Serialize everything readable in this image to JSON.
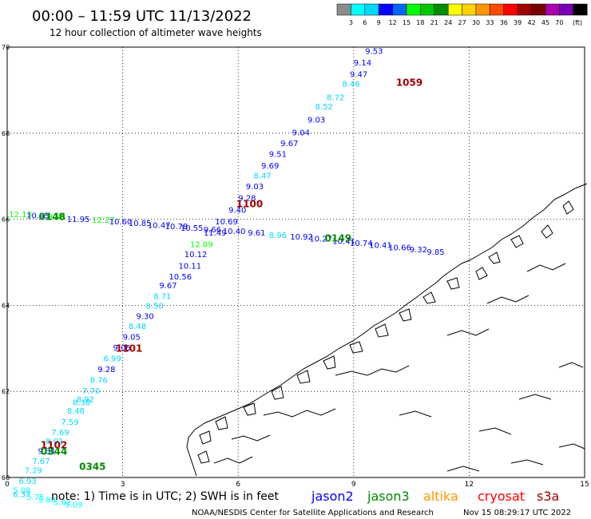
{
  "header": {
    "title": "00:00 – 11:59 UTC 11/13/2022",
    "subtitle": "12 hour collection of altimeter wave heights"
  },
  "legend": {
    "labels": [
      "3",
      "6",
      "9",
      "12",
      "15",
      "18",
      "21",
      "24",
      "27",
      "30",
      "33",
      "36",
      "39",
      "42",
      "45",
      "70"
    ],
    "unit": "(ft)",
    "colors": [
      "#8c8c8c",
      "#00ffff",
      "#00d7ff",
      "#0000ff",
      "#0064ff",
      "#00ff00",
      "#00c800",
      "#008c00",
      "#ffff00",
      "#ffd200",
      "#ff9600",
      "#ff4b00",
      "#ff0000",
      "#a00000",
      "#780000",
      "#aa00aa",
      "#7800b4",
      "#000000"
    ]
  },
  "axes": {
    "x_ticks": [
      "0",
      "3",
      "6",
      "9",
      "12",
      "15"
    ],
    "y_ticks": [
      "60",
      "62",
      "64",
      "66",
      "68",
      "70"
    ],
    "x_range": [
      0,
      15
    ],
    "y_range": [
      60,
      70
    ]
  },
  "footer": {
    "note": "note:  1) Time is in UTC; 2) SWH is in feet",
    "credit": "NOAA/NESDIS Center for Satellite Applications and Research",
    "timestamp": "Nov 15 08:29:17 UTC 2022",
    "satellites": [
      {
        "name": "jason2",
        "color": "#0000ff"
      },
      {
        "name": "jason3",
        "color": "#008c00"
      },
      {
        "name": "altika",
        "color": "#ff9600"
      },
      {
        "name": "cryosat",
        "color": "#ff0000"
      },
      {
        "name": "s3a",
        "color": "#a00000"
      }
    ]
  },
  "passes": [
    {
      "label": "1059",
      "x": 10.1,
      "y": 69.1,
      "color": "#a00000"
    },
    {
      "label": "1100",
      "x": 5.95,
      "y": 66.28,
      "color": "#a00000"
    },
    {
      "label": "0148",
      "x": 0.82,
      "y": 65.98,
      "color": "#008c00"
    },
    {
      "label": "0149",
      "x": 8.25,
      "y": 65.48,
      "color": "#008c00"
    },
    {
      "label": "1101",
      "x": 2.82,
      "y": 62.92,
      "color": "#a00000"
    },
    {
      "label": "1102",
      "x": 0.87,
      "y": 60.68,
      "color": "#a00000"
    },
    {
      "label": "0344",
      "x": 0.87,
      "y": 60.53,
      "color": "#008c00"
    },
    {
      "label": "0345",
      "x": 1.87,
      "y": 60.18,
      "color": "#008c00"
    }
  ],
  "wave_heights": [
    {
      "v": "9.53",
      "x": 9.3,
      "y": 69.84,
      "c": "#0000ff"
    },
    {
      "v": "9.14",
      "x": 9.0,
      "y": 69.57,
      "c": "#0000ff"
    },
    {
      "v": "9.47",
      "x": 8.9,
      "y": 69.3,
      "c": "#0000ff"
    },
    {
      "v": "8.46",
      "x": 8.7,
      "y": 69.08,
      "c": "#00d7ff"
    },
    {
      "v": "8.72",
      "x": 8.3,
      "y": 68.77,
      "c": "#00d7ff"
    },
    {
      "v": "8.52",
      "x": 8.0,
      "y": 68.55,
      "c": "#00d7ff"
    },
    {
      "v": "9.03",
      "x": 7.8,
      "y": 68.25,
      "c": "#0000ff"
    },
    {
      "v": "9.04",
      "x": 7.4,
      "y": 67.95,
      "c": "#0000ff"
    },
    {
      "v": "9.67",
      "x": 7.1,
      "y": 67.7,
      "c": "#0000ff"
    },
    {
      "v": "9.51",
      "x": 6.8,
      "y": 67.45,
      "c": "#0000ff"
    },
    {
      "v": "9.69",
      "x": 6.6,
      "y": 67.18,
      "c": "#0000ff"
    },
    {
      "v": "8.47",
      "x": 6.4,
      "y": 66.95,
      "c": "#00d7ff"
    },
    {
      "v": "9.03",
      "x": 6.2,
      "y": 66.7,
      "c": "#0000ff"
    },
    {
      "v": "9.28",
      "x": 6.0,
      "y": 66.43,
      "c": "#0000ff"
    },
    {
      "v": "9.40",
      "x": 5.75,
      "y": 66.15,
      "c": "#0000ff"
    },
    {
      "v": "10.69",
      "x": 5.4,
      "y": 65.88,
      "c": "#0000ff"
    },
    {
      "v": "11.49",
      "x": 5.1,
      "y": 65.62,
      "c": "#0000ff"
    },
    {
      "v": "12.09",
      "x": 4.75,
      "y": 65.35,
      "c": "#00ff00"
    },
    {
      "v": "10.12",
      "x": 4.6,
      "y": 65.12,
      "c": "#0000ff"
    },
    {
      "v": "10.11",
      "x": 4.45,
      "y": 64.85,
      "c": "#0000ff"
    },
    {
      "v": "10.56",
      "x": 4.2,
      "y": 64.6,
      "c": "#0000ff"
    },
    {
      "v": "9.67",
      "x": 3.95,
      "y": 64.4,
      "c": "#0000ff"
    },
    {
      "v": "8.71",
      "x": 3.8,
      "y": 64.15,
      "c": "#00d7ff"
    },
    {
      "v": "8.50",
      "x": 3.6,
      "y": 63.92,
      "c": "#00d7ff"
    },
    {
      "v": "9.30",
      "x": 3.35,
      "y": 63.68,
      "c": "#0000ff"
    },
    {
      "v": "8.48",
      "x": 3.15,
      "y": 63.45,
      "c": "#00d7ff"
    },
    {
      "v": "9.05",
      "x": 3.0,
      "y": 63.2,
      "c": "#0000ff"
    },
    {
      "v": "9.05",
      "x": 2.75,
      "y": 62.95,
      "c": "#0000ff"
    },
    {
      "v": "6.99",
      "x": 2.5,
      "y": 62.7,
      "c": "#00d7ff"
    },
    {
      "v": "9.28",
      "x": 2.35,
      "y": 62.45,
      "c": "#0000ff"
    },
    {
      "v": "8.76",
      "x": 2.15,
      "y": 62.2,
      "c": "#00d7ff"
    },
    {
      "v": "7.70",
      "x": 1.95,
      "y": 61.95,
      "c": "#00d7ff"
    },
    {
      "v": "8.92",
      "x": 1.8,
      "y": 61.75,
      "c": "#00d7ff"
    },
    {
      "v": "8.38",
      "x": 1.7,
      "y": 61.68,
      "c": "#00d7ff"
    },
    {
      "v": "8.48",
      "x": 1.55,
      "y": 61.48,
      "c": "#00d7ff"
    },
    {
      "v": "7.59",
      "x": 1.4,
      "y": 61.22,
      "c": "#00d7ff"
    },
    {
      "v": "7.69",
      "x": 1.15,
      "y": 60.98,
      "c": "#00d7ff"
    },
    {
      "v": "8.01",
      "x": 1.0,
      "y": 60.78,
      "c": "#00d7ff"
    },
    {
      "v": "9.31",
      "x": 0.8,
      "y": 60.55,
      "c": "#0000ff"
    },
    {
      "v": "7.67",
      "x": 0.65,
      "y": 60.32,
      "c": "#00d7ff"
    },
    {
      "v": "7.29",
      "x": 0.45,
      "y": 60.1,
      "c": "#00d7ff"
    },
    {
      "v": "6.93",
      "x": 0.3,
      "y": 59.85,
      "c": "#00d7ff"
    },
    {
      "v": "5.08",
      "x": 0.15,
      "y": 59.64,
      "c": "#00ffff"
    },
    {
      "v": "6.37",
      "x": 0.15,
      "y": 59.55,
      "c": "#00d7ff"
    },
    {
      "v": "5.75",
      "x": 0.5,
      "y": 59.48,
      "c": "#00ffff"
    },
    {
      "v": "5.88",
      "x": 0.8,
      "y": 59.42,
      "c": "#00ffff"
    },
    {
      "v": "5.62",
      "x": 1.2,
      "y": 59.36,
      "c": "#00ffff"
    },
    {
      "v": "5.09",
      "x": 1.5,
      "y": 59.3,
      "c": "#00ffff"
    },
    {
      "v": "12.13",
      "x": 0.05,
      "y": 66.05,
      "c": "#00ff00"
    },
    {
      "v": "10.95",
      "x": 0.5,
      "y": 66.02,
      "c": "#0000ff"
    },
    {
      "v": "9.96",
      "x": 1.05,
      "y": 66.0,
      "c": "#00ff00"
    },
    {
      "v": "11.95",
      "x": 1.55,
      "y": 65.94,
      "c": "#0000ff"
    },
    {
      "v": "12.27",
      "x": 2.2,
      "y": 65.92,
      "c": "#00ff00"
    },
    {
      "v": "10.60",
      "x": 2.65,
      "y": 65.88,
      "c": "#0000ff"
    },
    {
      "v": "10.85",
      "x": 3.15,
      "y": 65.84,
      "c": "#0000ff"
    },
    {
      "v": "10.47",
      "x": 3.65,
      "y": 65.8,
      "c": "#0000ff"
    },
    {
      "v": "10.78",
      "x": 4.1,
      "y": 65.77,
      "c": "#0000ff"
    },
    {
      "v": "10.55",
      "x": 4.5,
      "y": 65.73,
      "c": "#0000ff"
    },
    {
      "v": "9.66",
      "x": 5.1,
      "y": 65.7,
      "c": "#0000ff"
    },
    {
      "v": "10.40",
      "x": 5.6,
      "y": 65.66,
      "c": "#0000ff"
    },
    {
      "v": "9.61",
      "x": 6.25,
      "y": 65.62,
      "c": "#0000ff"
    },
    {
      "v": "8.96",
      "x": 6.8,
      "y": 65.57,
      "c": "#00d7ff"
    },
    {
      "v": "10.92",
      "x": 7.35,
      "y": 65.53,
      "c": "#0000ff"
    },
    {
      "v": "10.27",
      "x": 7.85,
      "y": 65.48,
      "c": "#0000ff"
    },
    {
      "v": "10.41",
      "x": 8.45,
      "y": 65.43,
      "c": "#0000ff"
    },
    {
      "v": "10.74",
      "x": 8.9,
      "y": 65.38,
      "c": "#0000ff"
    },
    {
      "v": "10.41",
      "x": 9.4,
      "y": 65.33,
      "c": "#0000ff"
    },
    {
      "v": "10.66",
      "x": 9.9,
      "y": 65.28,
      "c": "#0000ff"
    },
    {
      "v": "9.32",
      "x": 10.45,
      "y": 65.23,
      "c": "#0000ff"
    },
    {
      "v": "9.85",
      "x": 10.9,
      "y": 65.18,
      "c": "#0000ff"
    }
  ]
}
